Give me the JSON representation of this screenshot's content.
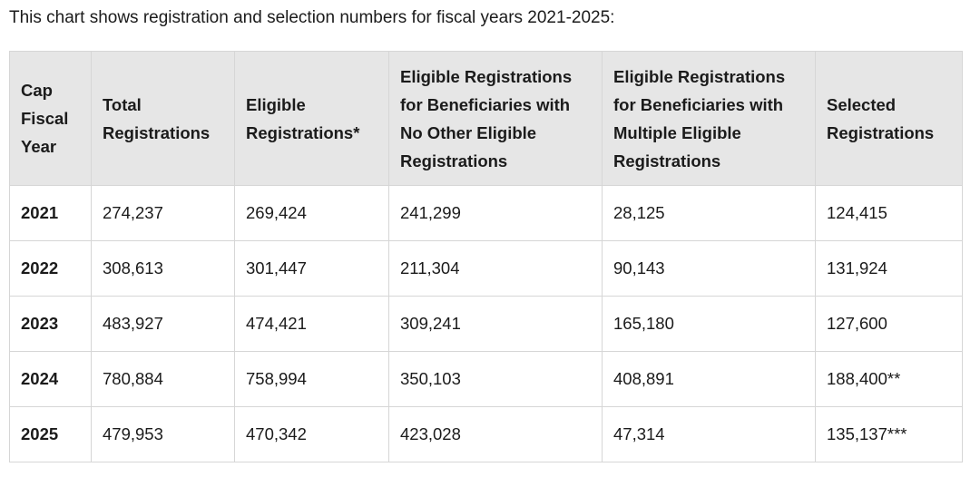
{
  "intro_text": "This chart shows registration and selection numbers for fiscal years 2021-2025:",
  "table": {
    "headers": [
      "Cap Fiscal Year",
      "Total Registrations",
      "Eligible Registrations*",
      "Eligible Registrations for Beneficiaries with No Other Eligible Registrations",
      "Eligible Registrations for Beneficiaries with Multiple Eligible Registrations",
      "Selected Registrations"
    ],
    "rows": [
      [
        "2021",
        "274,237",
        "269,424",
        "241,299",
        "28,125",
        "124,415"
      ],
      [
        "2022",
        "308,613",
        "301,447",
        "211,304",
        "90,143",
        "131,924"
      ],
      [
        "2023",
        "483,927",
        "474,421",
        "309,241",
        "165,180",
        "127,600"
      ],
      [
        "2024",
        "780,884",
        "758,994",
        "350,103",
        "408,891",
        "188,400**"
      ],
      [
        "2025",
        "479,953",
        "470,342",
        "423,028",
        "47,314",
        "135,137***"
      ]
    ]
  },
  "colors": {
    "header_background": "#e6e6e6",
    "border": "#d6d6d6",
    "text": "#1b1b1b"
  }
}
